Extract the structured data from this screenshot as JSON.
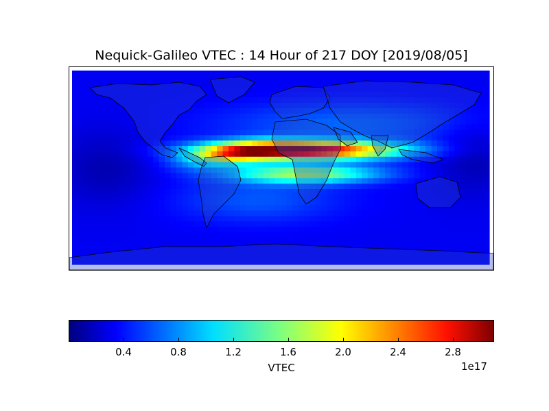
{
  "title": "Nequick-Galileo VTEC : 14 Hour of 217 DOY [2019/08/05]",
  "colorbar": {
    "label": "VTEC",
    "exponent": "1e17",
    "min": 0,
    "max": 3.1,
    "ticks": [
      "0.4",
      "0.8",
      "1.2",
      "1.6",
      "2.0",
      "2.4",
      "2.8"
    ],
    "tick_values": [
      0.4,
      0.8,
      1.2,
      1.6,
      2.0,
      2.4,
      2.8
    ],
    "colormap": "jet"
  },
  "map": {
    "projection": "equirectangular",
    "lon_range": [
      -180,
      180
    ],
    "lat_range": [
      -90,
      90
    ],
    "coastlines": true,
    "borders": true,
    "field": "VTEC (electrons/m^2)",
    "peak": {
      "lon": 25,
      "lat": 17,
      "value": 3.0
    },
    "background_value": 0.35
  }
}
